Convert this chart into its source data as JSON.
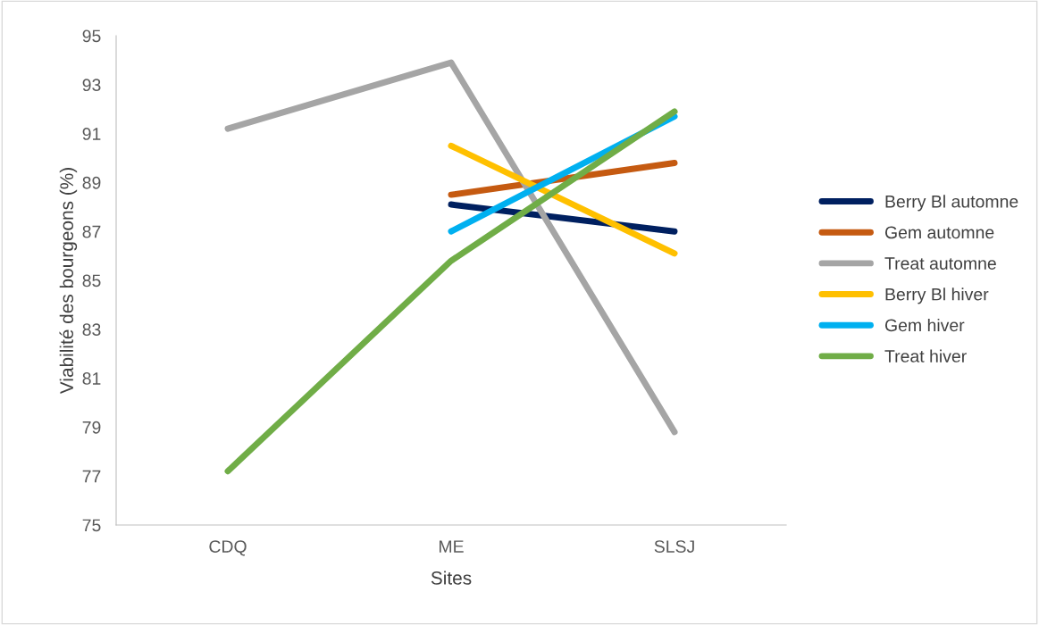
{
  "chart_data": {
    "type": "line",
    "xlabel": "Sites",
    "ylabel": "Viabilité des bourgeons (%)",
    "categories": [
      "CDQ",
      "ME",
      "SLSJ"
    ],
    "series": [
      {
        "name": "Berry Bl automne",
        "color": "#002060",
        "values": [
          null,
          88.1,
          87.0
        ]
      },
      {
        "name": "Gem automne",
        "color": "#c55a11",
        "values": [
          null,
          88.5,
          89.8
        ]
      },
      {
        "name": "Treat automne",
        "color": "#a5a5a5",
        "values": [
          91.2,
          93.9,
          78.8
        ]
      },
      {
        "name": "Berry Bl hiver",
        "color": "#ffc000",
        "values": [
          null,
          90.5,
          86.1
        ]
      },
      {
        "name": "Gem hiver",
        "color": "#00b0f0",
        "values": [
          null,
          87.0,
          91.7
        ]
      },
      {
        "name": "Treat hiver",
        "color": "#70ad47",
        "values": [
          77.2,
          85.8,
          91.9
        ]
      }
    ],
    "ylim": [
      75,
      95
    ],
    "yticks": [
      75,
      77,
      79,
      81,
      83,
      85,
      87,
      89,
      91,
      93,
      95
    ],
    "grid": false,
    "legend": "right",
    "marker": "none",
    "line_style": "solid"
  }
}
